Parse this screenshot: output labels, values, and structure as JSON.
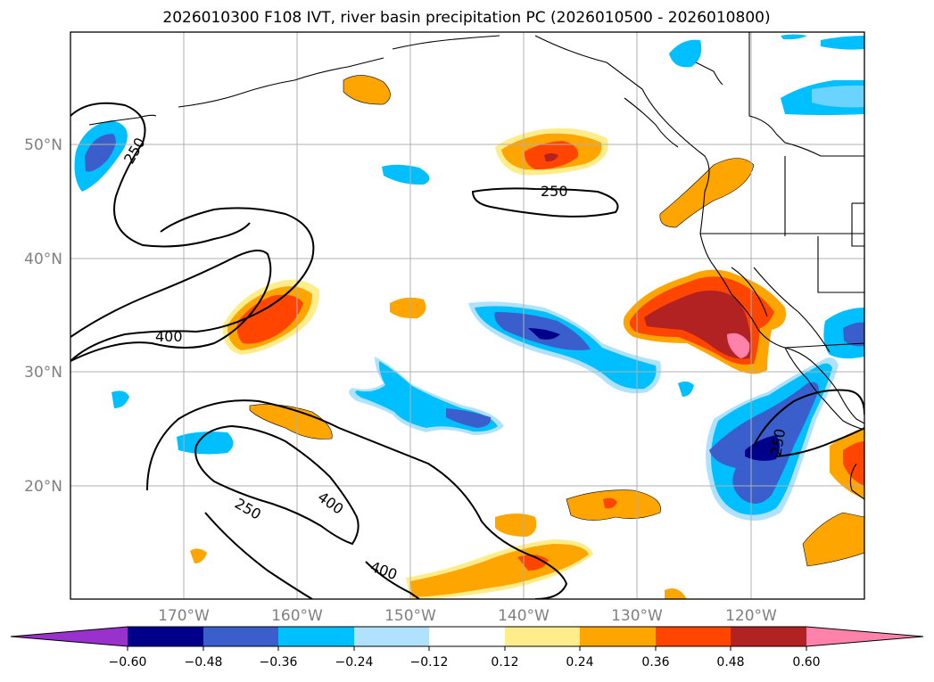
{
  "title": "2026010300 F108 IVT, river basin precipitation PC (2026010500 - 2026010800)",
  "map": {
    "lat_labels": [
      "50°N",
      "40°N",
      "30°N",
      "20°N"
    ],
    "lon_labels": [
      "170°W",
      "160°W",
      "150°W",
      "140°W",
      "130°W",
      "120°W"
    ],
    "contour_labels": [
      "250",
      "250",
      "400",
      "400",
      "250",
      "400",
      "250"
    ]
  },
  "colorbar": {
    "ticks": [
      "−0.60",
      "−0.48",
      "−0.36",
      "−0.24",
      "−0.12",
      "0.12",
      "0.24",
      "0.36",
      "0.48",
      "0.60"
    ],
    "colors": [
      "#9932cc",
      "#00008b",
      "#3a5fcd",
      "#00bfff",
      "#b0e2ff",
      "#ffffff",
      "#ffec8b",
      "#ffa500",
      "#ff4500",
      "#b22222",
      "#ff82ab"
    ]
  }
}
